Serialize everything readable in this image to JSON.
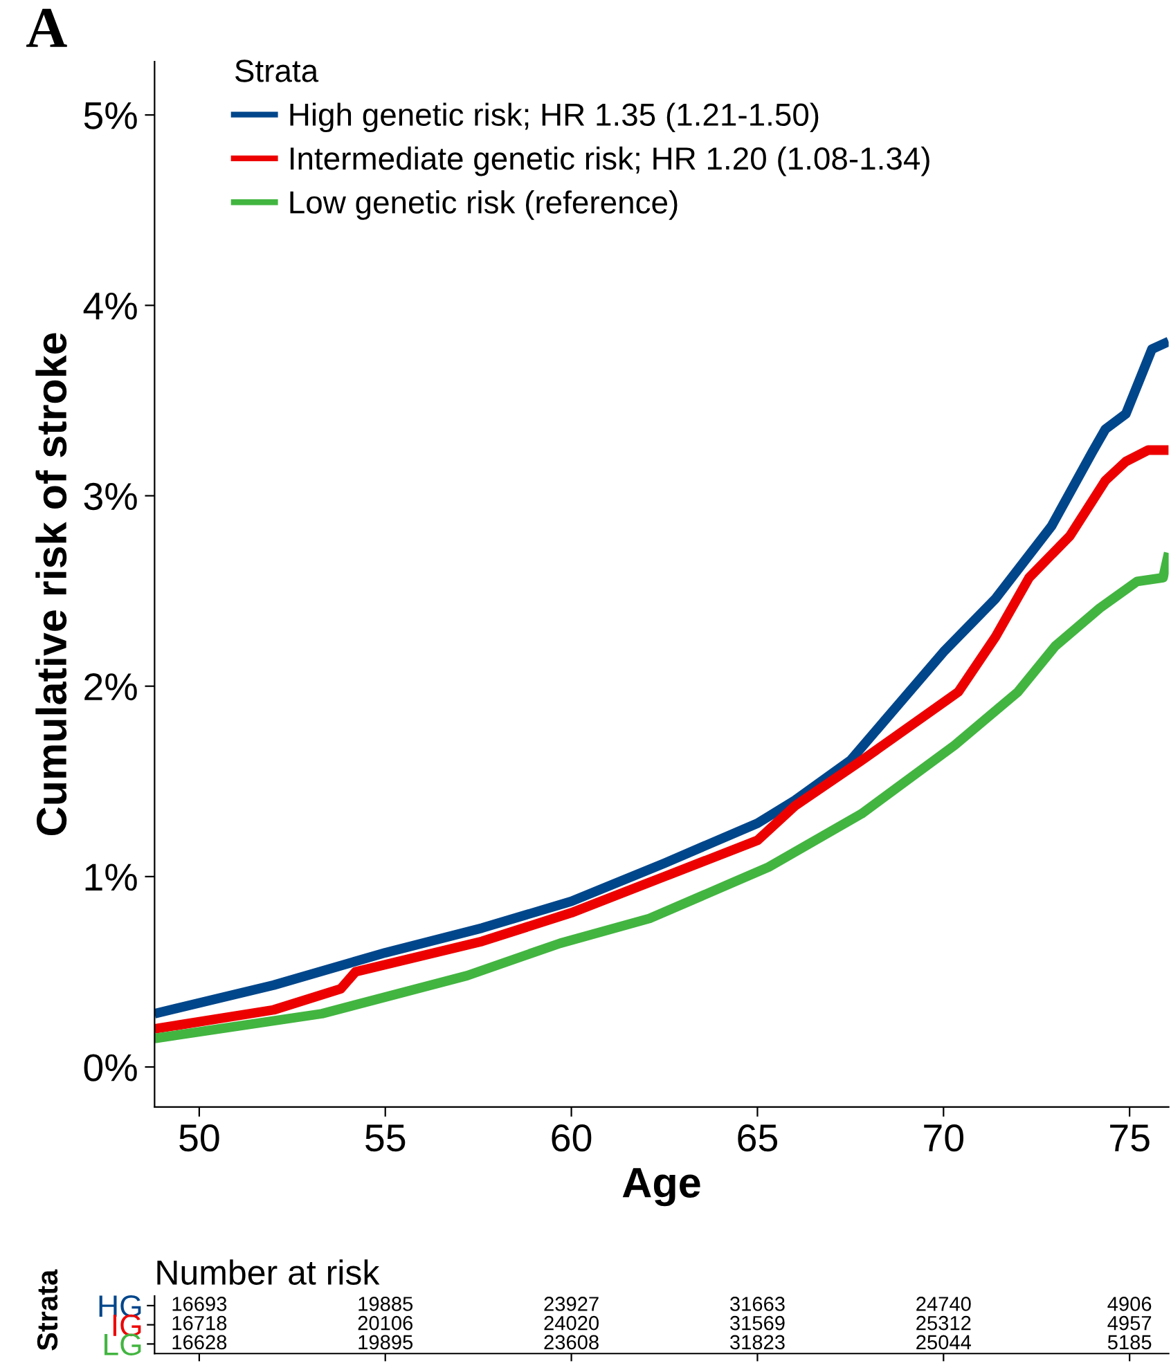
{
  "chart_data": [
    {
      "type": "line",
      "xlabel": "Age",
      "ylabel": "Cumulative risk of stroke",
      "legend_title": "Strata",
      "legend": "top left",
      "grid": false,
      "annotations": [
        "A"
      ],
      "xlim": [
        48.8,
        76.05
      ],
      "xticks": [
        50,
        55,
        60,
        65,
        70,
        75
      ],
      "ylim": [
        -0.21,
        5.28
      ],
      "yticks": [
        {
          "value": 0,
          "label": "0%"
        },
        {
          "value": 1,
          "label": "1%"
        },
        {
          "value": 2,
          "label": "2%"
        },
        {
          "value": 3,
          "label": "3%"
        },
        {
          "value": 4,
          "label": "4%"
        },
        {
          "value": 5,
          "label": "5%"
        }
      ],
      "series": [
        {
          "name": "High genetic risk; HR 1.35 (1.21-1.50)",
          "color": "#00468b",
          "x": [
            48.8,
            52,
            55,
            57.6,
            60,
            62.5,
            65,
            66,
            67.5,
            70,
            71.4,
            72.9,
            74,
            74.35,
            74.9,
            75.6,
            76.05
          ],
          "values": [
            0.28,
            0.43,
            0.6,
            0.73,
            0.87,
            1.07,
            1.28,
            1.4,
            1.61,
            2.18,
            2.46,
            2.84,
            3.23,
            3.35,
            3.43,
            3.77,
            3.81
          ]
        },
        {
          "name": "Intermediate genetic risk; HR 1.20 (1.08-1.34)",
          "color": "#ed0000",
          "x": [
            48.8,
            52,
            53.8,
            54.2,
            57.6,
            60,
            62.5,
            65,
            66,
            67.8,
            70.4,
            71.4,
            72.3,
            73.4,
            74.35,
            74.9,
            75.5,
            76.05
          ],
          "values": [
            0.2,
            0.3,
            0.41,
            0.5,
            0.66,
            0.81,
            1.0,
            1.19,
            1.37,
            1.61,
            1.97,
            2.26,
            2.57,
            2.79,
            3.08,
            3.18,
            3.24,
            3.24
          ]
        },
        {
          "name": "Low genetic risk (reference)",
          "color": "#42b540",
          "x": [
            48.8,
            53.3,
            57.2,
            59.7,
            62.1,
            65.3,
            67.8,
            70.3,
            72,
            73,
            74.2,
            75.2,
            75.9,
            76.05
          ],
          "values": [
            0.15,
            0.28,
            0.48,
            0.65,
            0.78,
            1.05,
            1.33,
            1.69,
            1.97,
            2.21,
            2.41,
            2.55,
            2.57,
            2.7
          ]
        }
      ]
    },
    {
      "type": "other",
      "title": "Number at risk",
      "ylabel": "Strata",
      "categories": [
        null,
        null,
        null,
        null,
        null,
        null
      ],
      "y_categories": [
        "HG",
        "IG",
        "LG"
      ],
      "colors": [
        "#00468b",
        "#ed0000",
        "#42b540"
      ],
      "cell_labels": [
        [
          "16693",
          "19885",
          "23927",
          "31663",
          "24740",
          "4906"
        ],
        [
          "16718",
          "20106",
          "24020",
          "31569",
          "25312",
          "4957"
        ],
        [
          "16628",
          "19895",
          "23608",
          "31823",
          "25044",
          "5185"
        ]
      ]
    }
  ]
}
